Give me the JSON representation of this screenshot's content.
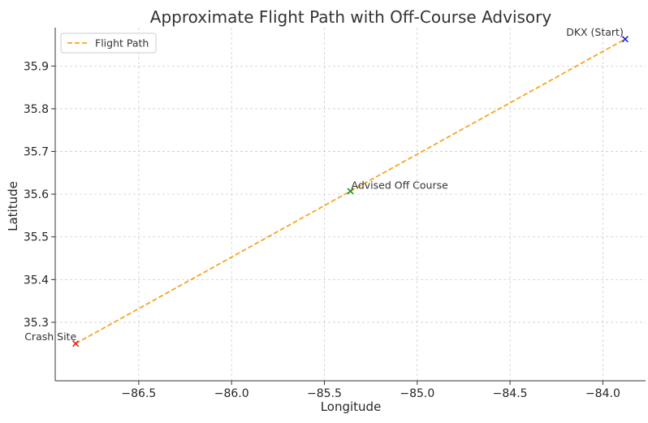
{
  "chart_data": {
    "type": "line",
    "title": "Approximate Flight Path with Off-Course Advisory",
    "xlabel": "Longitude",
    "ylabel": "Latitude",
    "xlim": [
      -86.95,
      -83.77
    ],
    "ylim": [
      35.163,
      35.99
    ],
    "xticks": [
      -86.5,
      -86.0,
      -85.5,
      -85.0,
      -84.5,
      -84.0
    ],
    "xtick_labels": [
      "−86.5",
      "−86.0",
      "−85.5",
      "−85.0",
      "−84.5",
      "−84.0"
    ],
    "yticks": [
      35.3,
      35.4,
      35.5,
      35.6,
      35.7,
      35.8,
      35.9
    ],
    "ytick_labels": [
      "35.3",
      "35.4",
      "35.5",
      "35.6",
      "35.7",
      "35.8",
      "35.9"
    ],
    "grid": true,
    "legend_position": "top-left",
    "series": [
      {
        "name": "Flight Path",
        "color": "#f5a623",
        "style": "dashed",
        "x": [
          -86.84,
          -85.36,
          -83.88
        ],
        "y": [
          35.25,
          35.607,
          35.963
        ]
      }
    ],
    "points": [
      {
        "label": "DKX (Start)",
        "x": -83.88,
        "y": 35.963,
        "color": "#1f1fd6",
        "marker": "x"
      },
      {
        "label": "Advised Off Course",
        "x": -85.36,
        "y": 35.607,
        "color": "#1a8f1a",
        "marker": "x"
      },
      {
        "label": "Crash Site",
        "x": -86.84,
        "y": 35.25,
        "color": "#e02020",
        "marker": "x"
      }
    ]
  }
}
